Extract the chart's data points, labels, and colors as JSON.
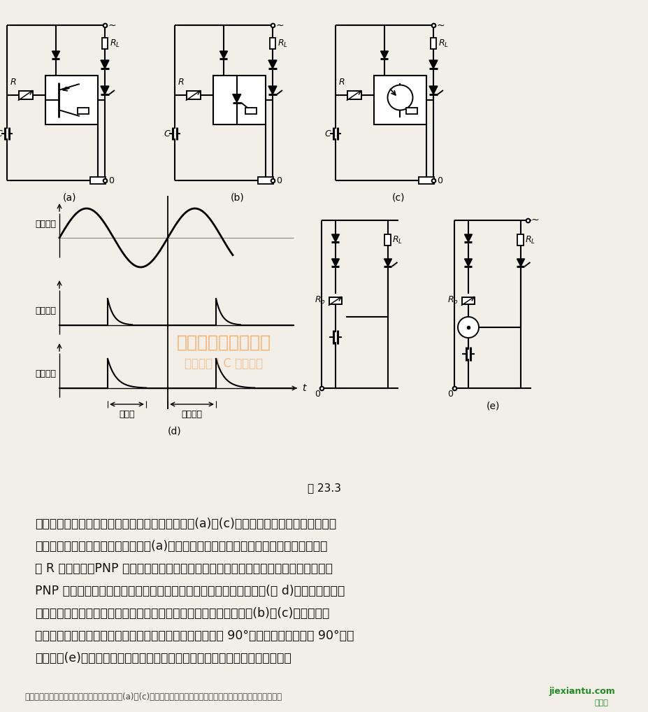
{
  "bg_color": "#f2efe8",
  "fig_label": "图 23.3",
  "watermark_text": "杭州怡缘电子市场网",
  "watermark_sub": "全球最大 I C 采购网站",
  "body_text_lines": [
    "　　利用脉冲控制晶闸管导通角既准确又可靠。图(a)～(c)示出利用电阻、电容构成的桥式",
    "电路来决定晶闸管导通的时刻。在图(a)中对角线上接入的放大环节作为触发元件。根据电",
    "阻 R 值的不同，PNP 晶体管的射极电压将不同程度的落后于该晶体管的基极电压。起初",
    "PNP 晶体管发射结反偏，晶体管截止，晶闸管门极无触发脉冲也关断(图 d)，待经过触发延",
    "迟时间后桥式电路对角线上电压极性改变才使晶体管和晶闸导通。图(b)和(c)分别用硅可",
    "控开关和单结晶体管代替晶体管。上述电路适于导通角小于 90°的情况。如要求大于 90°，则",
    "应采用图(e)中所示的两种电路，它们分别用触发二极管和氖管作为触发元件。"
  ],
  "caption_line": "利用脉冲控制晶闸管导通角既准确又可靠。图(a)～(c)示出利用电阻、电容构成的桥式电路来决定晶闸管导通的时刻"
}
